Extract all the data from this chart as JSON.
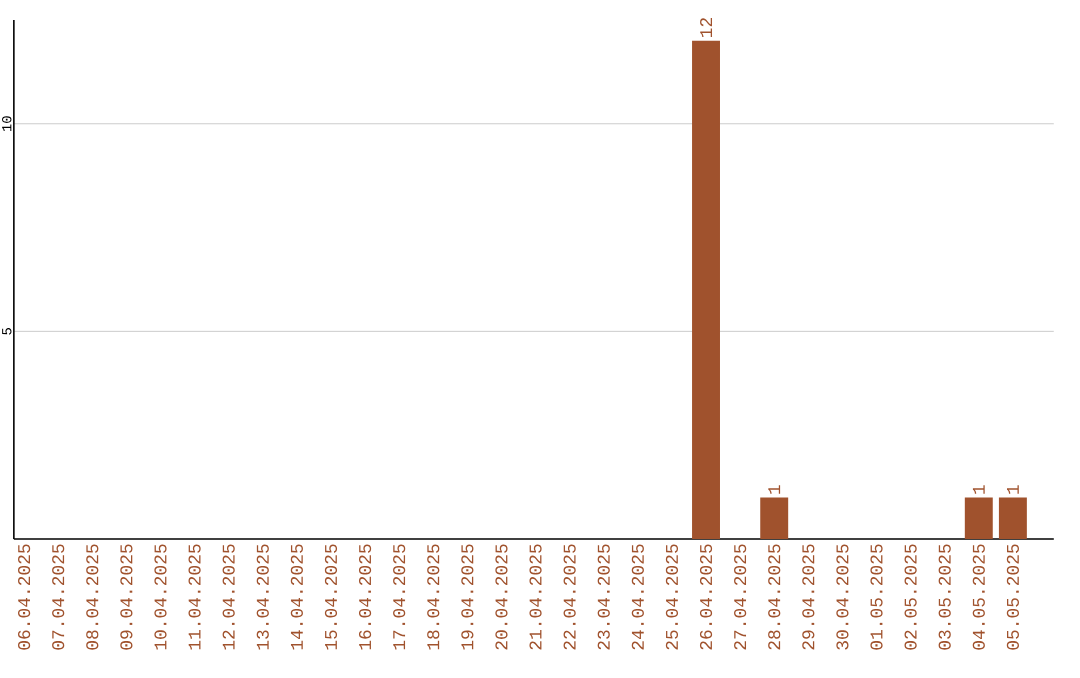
{
  "chart_data": {
    "type": "bar",
    "categories": [
      "06.04.2025",
      "07.04.2025",
      "08.04.2025",
      "09.04.2025",
      "10.04.2025",
      "11.04.2025",
      "12.04.2025",
      "13.04.2025",
      "14.04.2025",
      "15.04.2025",
      "16.04.2025",
      "17.04.2025",
      "18.04.2025",
      "19.04.2025",
      "20.04.2025",
      "21.04.2025",
      "22.04.2025",
      "23.04.2025",
      "24.04.2025",
      "25.04.2025",
      "26.04.2025",
      "27.04.2025",
      "28.04.2025",
      "29.04.2025",
      "30.04.2025",
      "01.05.2025",
      "02.05.2025",
      "03.05.2025",
      "04.05.2025",
      "05.05.2025"
    ],
    "values": [
      0,
      0,
      0,
      0,
      0,
      0,
      0,
      0,
      0,
      0,
      0,
      0,
      0,
      0,
      0,
      0,
      0,
      0,
      0,
      0,
      12,
      0,
      1,
      0,
      0,
      0,
      0,
      0,
      1,
      1
    ],
    "value_labels": [
      null,
      null,
      null,
      null,
      null,
      null,
      null,
      null,
      null,
      null,
      null,
      null,
      null,
      null,
      null,
      null,
      null,
      null,
      null,
      null,
      "12",
      null,
      "1",
      null,
      null,
      null,
      null,
      null,
      "1",
      "1"
    ],
    "color": "#a0522d",
    "ylim": [
      0,
      12.5
    ],
    "yticks": [
      5,
      10
    ],
    "grid": "y"
  }
}
